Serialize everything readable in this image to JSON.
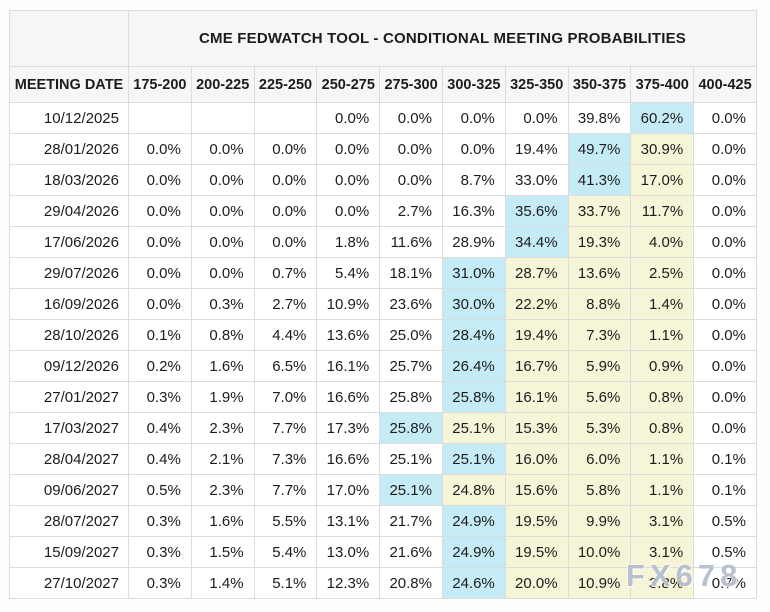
{
  "colors": {
    "highlight_cyan": "#c5ecf6",
    "highlight_yellow": "#f6f5d7",
    "header_bg": "#f6f6f6",
    "border": "#dcdcdc"
  },
  "watermark": "FX678",
  "chart_data": {
    "type": "table",
    "title": "CME FEDWATCH TOOL - CONDITIONAL MEETING PROBABILITIES",
    "date_column_header": "MEETING DATE",
    "rate_bin_headers": [
      "175-200",
      "200-225",
      "225-250",
      "250-275",
      "275-300",
      "300-325",
      "325-350",
      "350-375",
      "375-400",
      "400-425"
    ],
    "highlight_note_cyan_index_is_row_max": true,
    "rows": [
      {
        "date": "10/12/2025",
        "values": [
          "",
          "",
          "",
          "0.0%",
          "0.0%",
          "0.0%",
          "0.0%",
          "39.8%",
          "60.2%",
          "0.0%"
        ],
        "cyan": 8,
        "yellow": []
      },
      {
        "date": "28/01/2026",
        "values": [
          "0.0%",
          "0.0%",
          "0.0%",
          "0.0%",
          "0.0%",
          "0.0%",
          "19.4%",
          "49.7%",
          "30.9%",
          "0.0%"
        ],
        "cyan": 7,
        "yellow": [
          8
        ]
      },
      {
        "date": "18/03/2026",
        "values": [
          "0.0%",
          "0.0%",
          "0.0%",
          "0.0%",
          "0.0%",
          "8.7%",
          "33.0%",
          "41.3%",
          "17.0%",
          "0.0%"
        ],
        "cyan": 7,
        "yellow": [
          8
        ]
      },
      {
        "date": "29/04/2026",
        "values": [
          "0.0%",
          "0.0%",
          "0.0%",
          "0.0%",
          "2.7%",
          "16.3%",
          "35.6%",
          "33.7%",
          "11.7%",
          "0.0%"
        ],
        "cyan": 6,
        "yellow": [
          7,
          8
        ]
      },
      {
        "date": "17/06/2026",
        "values": [
          "0.0%",
          "0.0%",
          "0.0%",
          "1.8%",
          "11.6%",
          "28.9%",
          "34.4%",
          "19.3%",
          "4.0%",
          "0.0%"
        ],
        "cyan": 6,
        "yellow": [
          7,
          8
        ]
      },
      {
        "date": "29/07/2026",
        "values": [
          "0.0%",
          "0.0%",
          "0.7%",
          "5.4%",
          "18.1%",
          "31.0%",
          "28.7%",
          "13.6%",
          "2.5%",
          "0.0%"
        ],
        "cyan": 5,
        "yellow": [
          6,
          7,
          8
        ]
      },
      {
        "date": "16/09/2026",
        "values": [
          "0.0%",
          "0.3%",
          "2.7%",
          "10.9%",
          "23.6%",
          "30.0%",
          "22.2%",
          "8.8%",
          "1.4%",
          "0.0%"
        ],
        "cyan": 5,
        "yellow": [
          6,
          7,
          8
        ]
      },
      {
        "date": "28/10/2026",
        "values": [
          "0.1%",
          "0.8%",
          "4.4%",
          "13.6%",
          "25.0%",
          "28.4%",
          "19.4%",
          "7.3%",
          "1.1%",
          "0.0%"
        ],
        "cyan": 5,
        "yellow": [
          6,
          7,
          8
        ]
      },
      {
        "date": "09/12/2026",
        "values": [
          "0.2%",
          "1.6%",
          "6.5%",
          "16.1%",
          "25.7%",
          "26.4%",
          "16.7%",
          "5.9%",
          "0.9%",
          "0.0%"
        ],
        "cyan": 5,
        "yellow": [
          6,
          7,
          8
        ]
      },
      {
        "date": "27/01/2027",
        "values": [
          "0.3%",
          "1.9%",
          "7.0%",
          "16.6%",
          "25.8%",
          "25.8%",
          "16.1%",
          "5.6%",
          "0.8%",
          "0.0%"
        ],
        "cyan": 5,
        "yellow": [
          6,
          7,
          8
        ]
      },
      {
        "date": "17/03/2027",
        "values": [
          "0.4%",
          "2.3%",
          "7.7%",
          "17.3%",
          "25.8%",
          "25.1%",
          "15.3%",
          "5.3%",
          "0.8%",
          "0.0%"
        ],
        "cyan": 4,
        "yellow": [
          5,
          6,
          7,
          8
        ]
      },
      {
        "date": "28/04/2027",
        "values": [
          "0.4%",
          "2.1%",
          "7.3%",
          "16.6%",
          "25.1%",
          "25.1%",
          "16.0%",
          "6.0%",
          "1.1%",
          "0.1%"
        ],
        "cyan": 5,
        "yellow": [
          6,
          7,
          8
        ]
      },
      {
        "date": "09/06/2027",
        "values": [
          "0.5%",
          "2.3%",
          "7.7%",
          "17.0%",
          "25.1%",
          "24.8%",
          "15.6%",
          "5.8%",
          "1.1%",
          "0.1%"
        ],
        "cyan": 4,
        "yellow": [
          5,
          6,
          7,
          8
        ]
      },
      {
        "date": "28/07/2027",
        "values": [
          "0.3%",
          "1.6%",
          "5.5%",
          "13.1%",
          "21.7%",
          "24.9%",
          "19.5%",
          "9.9%",
          "3.1%",
          "0.5%"
        ],
        "cyan": 5,
        "yellow": [
          6,
          7,
          8
        ]
      },
      {
        "date": "15/09/2027",
        "values": [
          "0.3%",
          "1.5%",
          "5.4%",
          "13.0%",
          "21.6%",
          "24.9%",
          "19.5%",
          "10.0%",
          "3.1%",
          "0.5%"
        ],
        "cyan": 5,
        "yellow": [
          6,
          7,
          8
        ]
      },
      {
        "date": "27/10/2027",
        "values": [
          "0.3%",
          "1.4%",
          "5.1%",
          "12.3%",
          "20.8%",
          "24.6%",
          "20.0%",
          "10.9%",
          "3.8%",
          "0.7%"
        ],
        "cyan": 5,
        "yellow": [
          6,
          7,
          8
        ]
      }
    ]
  }
}
